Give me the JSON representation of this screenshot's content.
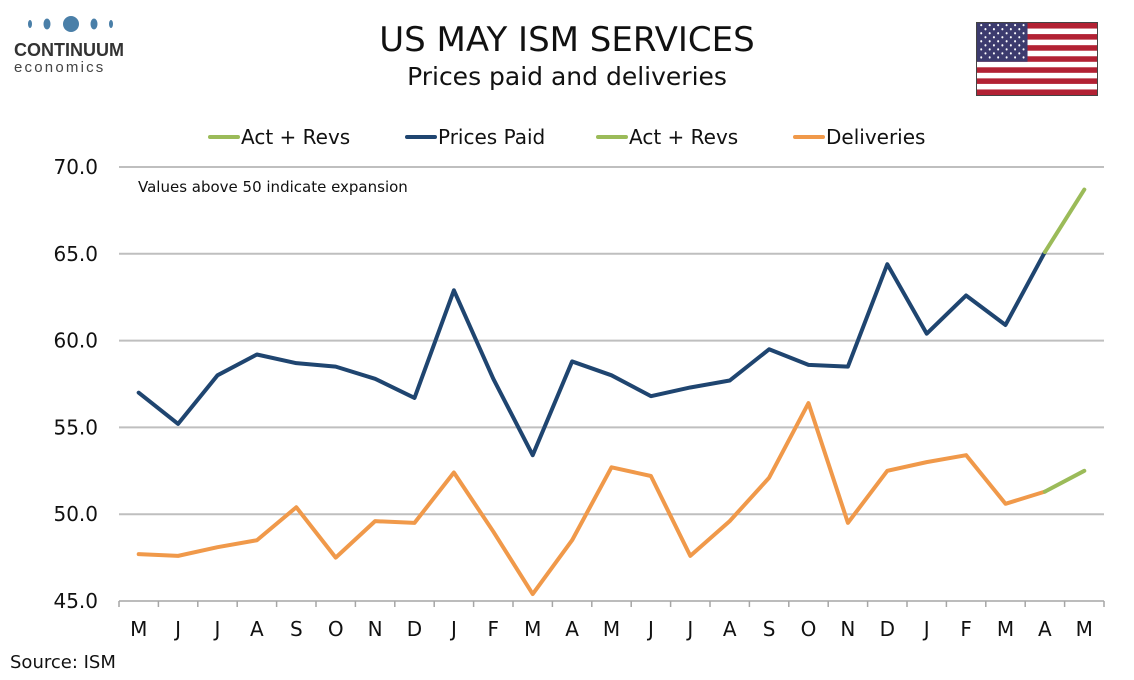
{
  "brand": {
    "name": "CONTINUUM",
    "sub": "economics"
  },
  "header": {
    "title": "US MAY ISM SERVICES",
    "subtitle": "Prices paid and deliveries"
  },
  "source": "Source: ISM",
  "colors": {
    "prices_paid": "#1f4570",
    "deliveries": "#f0994a",
    "act_revs": "#9bbb59",
    "grid": "#bfbfbf",
    "logo": "#4a7fa8"
  },
  "chart_data": {
    "type": "line",
    "categories": [
      "M",
      "J",
      "J",
      "A",
      "S",
      "O",
      "N",
      "D",
      "J",
      "F",
      "M",
      "A",
      "M",
      "J",
      "J",
      "A",
      "S",
      "O",
      "N",
      "D",
      "J",
      "F",
      "M",
      "A",
      "M"
    ],
    "ylim": [
      45.0,
      70.0
    ],
    "yticks": [
      "45.0",
      "50.0",
      "55.0",
      "60.0",
      "65.0",
      "70.0"
    ],
    "annotation": "Values above 50 indicate expansion",
    "legend_position": "top",
    "legend": [
      "Act + Revs",
      "Prices Paid",
      "Act + Revs",
      "Deliveries"
    ],
    "series": [
      {
        "name": "Prices Paid",
        "values": [
          57.0,
          55.2,
          58.0,
          59.2,
          58.7,
          58.5,
          57.8,
          56.7,
          62.9,
          57.8,
          53.4,
          58.8,
          58.0,
          56.8,
          57.3,
          57.7,
          59.5,
          58.6,
          58.5,
          64.4,
          60.4,
          62.6,
          60.9,
          65.1,
          68.7
        ]
      },
      {
        "name": "Deliveries",
        "values": [
          47.7,
          47.6,
          48.1,
          48.5,
          50.4,
          47.5,
          49.6,
          49.5,
          52.4,
          49.0,
          45.4,
          48.5,
          52.7,
          52.2,
          47.6,
          49.6,
          52.1,
          56.4,
          49.5,
          52.5,
          53.0,
          53.4,
          50.6,
          51.3,
          52.5
        ]
      }
    ],
    "act_revs_from_index": 23
  }
}
